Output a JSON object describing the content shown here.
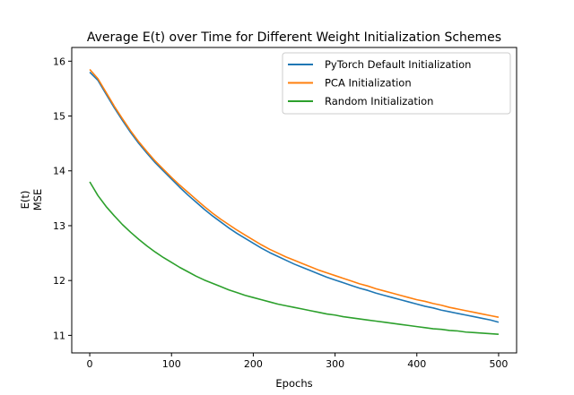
{
  "chart_data": {
    "type": "line",
    "title": "Average E(t) over Time for Different Weight Initialization Schemes",
    "xlabel": "Epochs",
    "ylabel_lines": [
      "E(t)",
      "MSE"
    ],
    "xlim": [
      -22,
      522
    ],
    "ylim": [
      10.68,
      16.25
    ],
    "x_ticks": [
      0,
      100,
      200,
      300,
      400,
      500
    ],
    "y_ticks": [
      11,
      12,
      13,
      14,
      15,
      16
    ],
    "grid": false,
    "legend_position": "top-right",
    "x": [
      0,
      10,
      20,
      30,
      40,
      50,
      60,
      70,
      80,
      90,
      100,
      110,
      120,
      130,
      140,
      150,
      160,
      170,
      180,
      190,
      200,
      210,
      220,
      230,
      240,
      250,
      260,
      270,
      280,
      290,
      300,
      310,
      320,
      330,
      340,
      350,
      360,
      370,
      380,
      390,
      400,
      410,
      420,
      430,
      440,
      450,
      460,
      470,
      480,
      490,
      500
    ],
    "series": [
      {
        "name": "PyTorch Default Initialization",
        "color": "#1f77b4",
        "values": [
          15.8,
          15.65,
          15.4,
          15.15,
          14.92,
          14.7,
          14.5,
          14.32,
          14.15,
          14.0,
          13.85,
          13.7,
          13.56,
          13.43,
          13.3,
          13.18,
          13.07,
          12.96,
          12.86,
          12.77,
          12.68,
          12.59,
          12.51,
          12.44,
          12.37,
          12.3,
          12.24,
          12.18,
          12.12,
          12.06,
          12.01,
          11.96,
          11.91,
          11.86,
          11.82,
          11.77,
          11.73,
          11.69,
          11.65,
          11.61,
          11.57,
          11.53,
          11.5,
          11.46,
          11.43,
          11.4,
          11.37,
          11.34,
          11.31,
          11.28,
          11.24
        ]
      },
      {
        "name": "PCA Initialization",
        "color": "#ff7f0e",
        "values": [
          15.85,
          15.68,
          15.43,
          15.18,
          14.95,
          14.73,
          14.53,
          14.35,
          14.18,
          14.03,
          13.88,
          13.74,
          13.61,
          13.48,
          13.35,
          13.23,
          13.12,
          13.02,
          12.92,
          12.83,
          12.74,
          12.65,
          12.57,
          12.5,
          12.43,
          12.37,
          12.31,
          12.25,
          12.19,
          12.14,
          12.09,
          12.04,
          11.99,
          11.94,
          11.9,
          11.85,
          11.81,
          11.77,
          11.73,
          11.69,
          11.65,
          11.62,
          11.58,
          11.55,
          11.51,
          11.48,
          11.45,
          11.42,
          11.39,
          11.36,
          11.33
        ]
      },
      {
        "name": "Random Initialization",
        "color": "#2ca02c",
        "values": [
          13.8,
          13.55,
          13.35,
          13.18,
          13.02,
          12.88,
          12.75,
          12.63,
          12.52,
          12.42,
          12.33,
          12.24,
          12.16,
          12.08,
          12.01,
          11.95,
          11.89,
          11.83,
          11.78,
          11.73,
          11.69,
          11.65,
          11.61,
          11.57,
          11.54,
          11.51,
          11.48,
          11.45,
          11.42,
          11.39,
          11.37,
          11.34,
          11.32,
          11.3,
          11.28,
          11.26,
          11.24,
          11.22,
          11.2,
          11.18,
          11.16,
          11.14,
          11.12,
          11.11,
          11.09,
          11.08,
          11.06,
          11.05,
          11.04,
          11.03,
          11.02
        ]
      }
    ]
  }
}
